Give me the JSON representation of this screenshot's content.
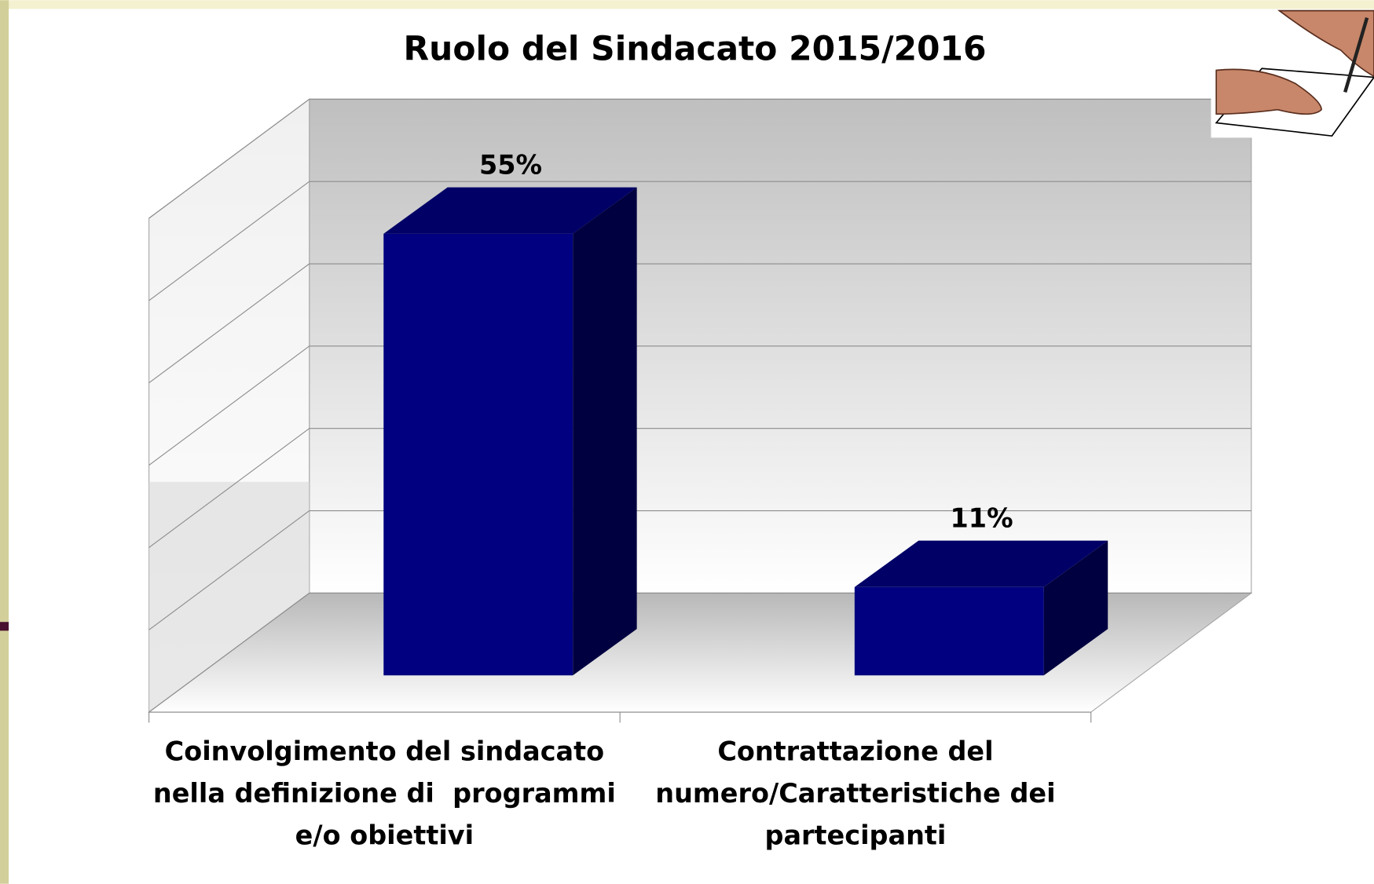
{
  "chart_data": {
    "type": "bar3d",
    "title": "Ruolo del Sindacato 2015/2016",
    "categories": [
      "Coinvolgimento del sindacato nella definizione di  programmi e/o obiettivi",
      "Contrattazione del numero/Caratteristiche dei partecipanti"
    ],
    "values": [
      55,
      11
    ],
    "value_labels": [
      "55%",
      "11%"
    ],
    "color": "#000080",
    "ylim": [
      0,
      60
    ],
    "yticks": [
      0,
      10,
      20,
      30,
      40,
      50,
      60
    ],
    "grid": true
  }
}
